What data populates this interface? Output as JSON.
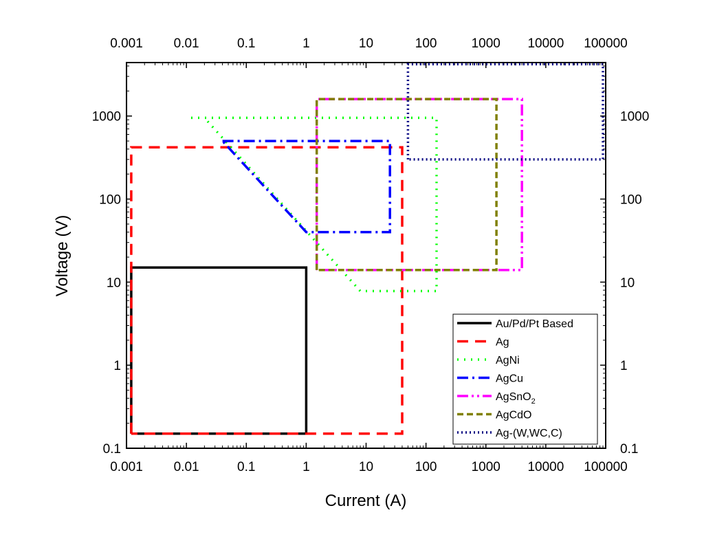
{
  "chart_data": {
    "type": "line",
    "title": "",
    "xlabel": "Current (A)",
    "ylabel": "Voltage (V)",
    "xscale": "log",
    "yscale": "log",
    "xlim": [
      0.001,
      100000
    ],
    "ylim": [
      0.1,
      4400
    ],
    "xticks": [
      {
        "value": 0.001,
        "label": "0.001"
      },
      {
        "value": 0.01,
        "label": "0.01"
      },
      {
        "value": 0.1,
        "label": "0.1"
      },
      {
        "value": 1,
        "label": "1"
      },
      {
        "value": 10,
        "label": "10"
      },
      {
        "value": 100,
        "label": "100"
      },
      {
        "value": 1000,
        "label": "1000"
      },
      {
        "value": 10000,
        "label": "10000"
      },
      {
        "value": 100000,
        "label": "100000"
      }
    ],
    "yticks": [
      {
        "value": 0.1,
        "label": "0.1"
      },
      {
        "value": 1,
        "label": "1"
      },
      {
        "value": 10,
        "label": "10"
      },
      {
        "value": 100,
        "label": "100"
      },
      {
        "value": 1000,
        "label": "1000"
      }
    ],
    "mirror_axes": "top-right",
    "grid": false,
    "legend_position": "lower-right",
    "series": [
      {
        "name": "Au/Pd/Pt Based",
        "color": "#000000",
        "style": "solid",
        "points": [
          [
            0.0012,
            0.15
          ],
          [
            0.0012,
            15
          ],
          [
            1,
            15
          ],
          [
            1,
            0.15
          ],
          [
            0.0012,
            0.15
          ]
        ]
      },
      {
        "name": "Ag",
        "color": "#ff0000",
        "style": "dash",
        "points": [
          [
            0.0012,
            0.15
          ],
          [
            0.0012,
            420
          ],
          [
            40,
            420
          ],
          [
            40,
            0.15
          ],
          [
            0.0012,
            0.15
          ]
        ]
      },
      {
        "name": "AgNi",
        "color": "#00ff00",
        "style": "dot",
        "points": [
          [
            0.012,
            950
          ],
          [
            150,
            950
          ],
          [
            150,
            7.8
          ],
          [
            8,
            7.8
          ],
          [
            0.02,
            950
          ]
        ]
      },
      {
        "name": "AgCu",
        "color": "#0000ff",
        "style": "dashdot",
        "points": [
          [
            0.04,
            500
          ],
          [
            25,
            500
          ],
          [
            25,
            40
          ],
          [
            1,
            40
          ],
          [
            0.04,
            500
          ]
        ]
      },
      {
        "name": "AgSnO",
        "name_subscript": "2",
        "color": "#ff00ff",
        "style": "dashdotdot",
        "points": [
          [
            1.5,
            14
          ],
          [
            1.5,
            1600
          ],
          [
            4000,
            1600
          ],
          [
            4000,
            14
          ],
          [
            1.5,
            14
          ]
        ]
      },
      {
        "name": "AgCdO",
        "color": "#808000",
        "style": "shortdash",
        "points": [
          [
            1.5,
            14
          ],
          [
            1.5,
            1600
          ],
          [
            1500,
            1600
          ],
          [
            1500,
            14
          ],
          [
            1.5,
            14
          ]
        ]
      },
      {
        "name": "Ag-(W,WC,C)",
        "color": "#000080",
        "style": "shortdot",
        "points": [
          [
            50,
            300
          ],
          [
            50,
            4200
          ],
          [
            90000,
            4200
          ],
          [
            90000,
            300
          ],
          [
            50,
            300
          ]
        ]
      }
    ]
  }
}
